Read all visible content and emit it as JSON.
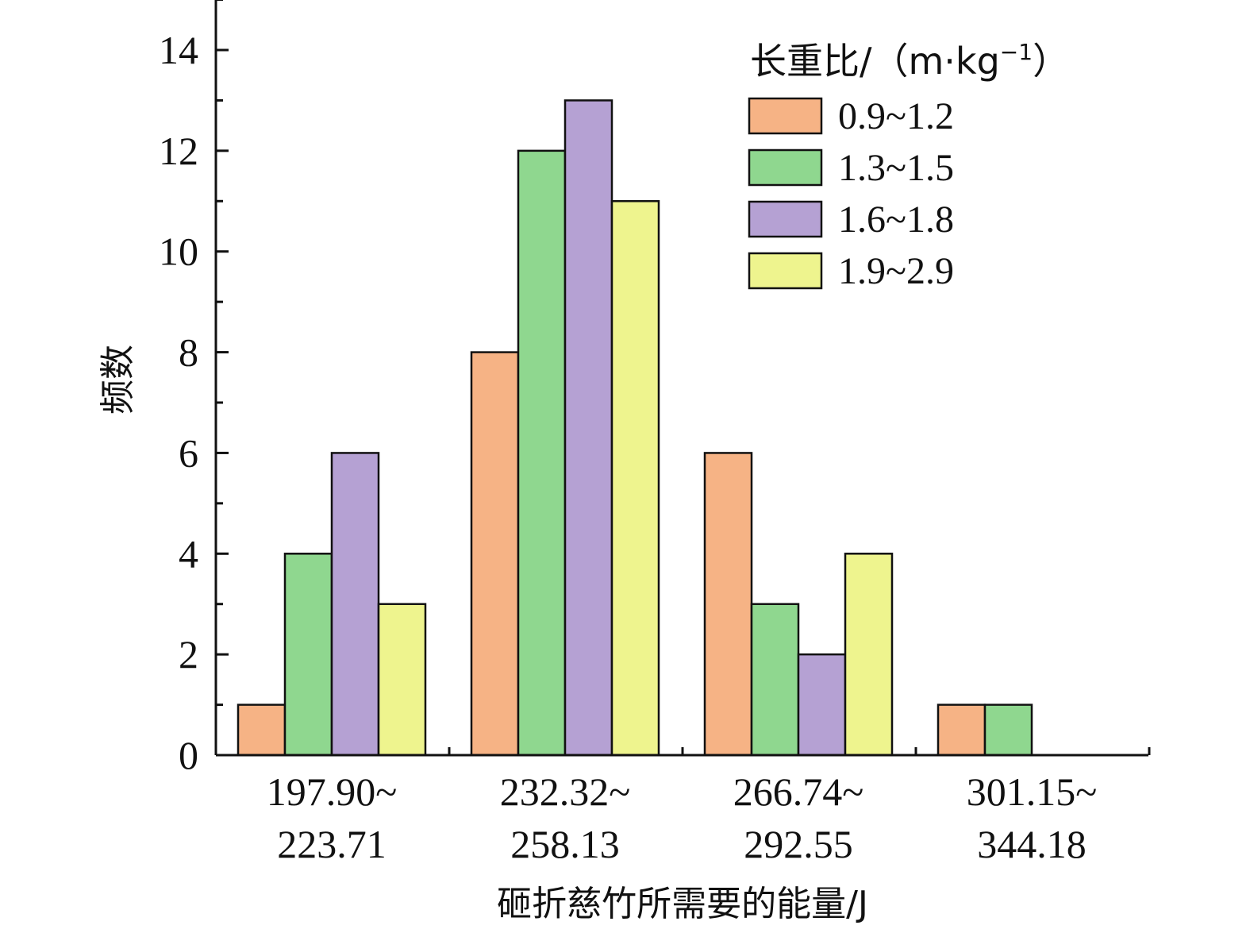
{
  "chart_data": {
    "type": "bar",
    "xlabel": "砸折慈竹所需要的能量/J",
    "ylabel": "频数",
    "ylim": [
      0,
      15
    ],
    "yticks": [
      0,
      2,
      4,
      6,
      8,
      10,
      12,
      14
    ],
    "categories": [
      [
        "197.90~",
        "223.71"
      ],
      [
        "232.32~",
        "258.13"
      ],
      [
        "266.74~",
        "292.55"
      ],
      [
        "301.15~",
        "344.18"
      ]
    ],
    "legend": {
      "title": "长重比/（m·kg",
      "title_sup": "−1",
      "title_end": "）",
      "position": "top-right"
    },
    "series": [
      {
        "name": "0.9~1.2",
        "color": "#F6B385",
        "values": [
          1,
          8,
          6,
          1
        ]
      },
      {
        "name": "1.3~1.5",
        "color": "#8FD78F",
        "values": [
          4,
          12,
          3,
          1
        ]
      },
      {
        "name": "1.6~1.8",
        "color": "#B5A1D3",
        "values": [
          6,
          13,
          2,
          0
        ]
      },
      {
        "name": "1.9~2.9",
        "color": "#EEF48E",
        "values": [
          3,
          11,
          4,
          0
        ]
      }
    ]
  }
}
